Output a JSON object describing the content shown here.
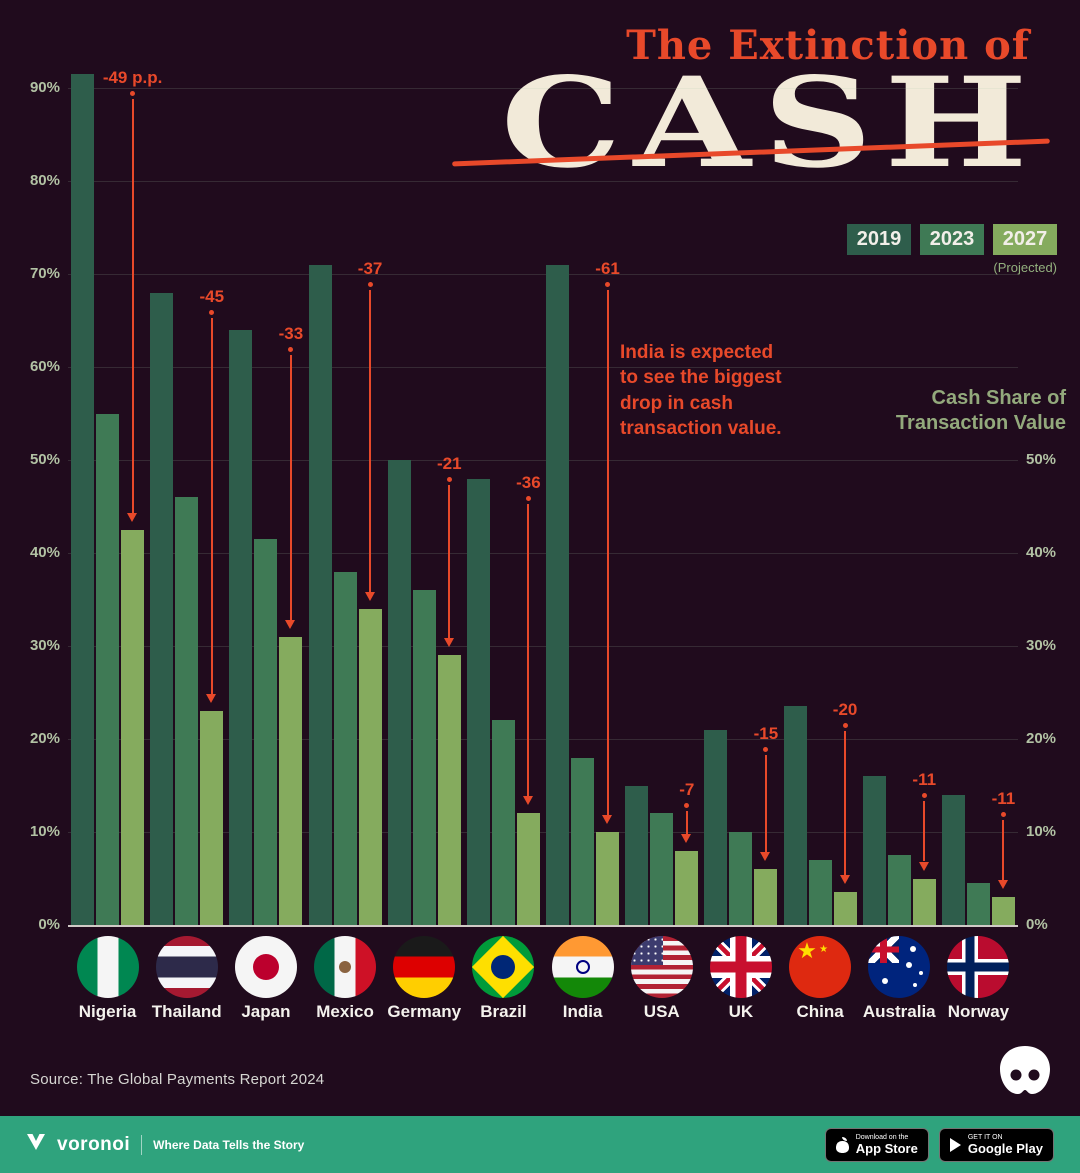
{
  "title": {
    "line1": "The Extinction of",
    "line2": "CASH"
  },
  "legend": {
    "years": [
      "2019",
      "2023",
      "2027"
    ],
    "note": "(Projected)"
  },
  "right_axis_label": "Cash Share of\nTransaction Value",
  "annotation_india": "India is expected\nto see the biggest\ndrop in cash\ntransaction value.",
  "chart_data": {
    "type": "bar",
    "title": "The Extinction of Cash",
    "unit": "% cash share of transaction value",
    "categories": [
      "Nigeria",
      "Thailand",
      "Japan",
      "Mexico",
      "Germany",
      "Brazil",
      "India",
      "USA",
      "UK",
      "China",
      "Australia",
      "Norway"
    ],
    "series": [
      {
        "name": "2019",
        "values": [
          91.5,
          68,
          64,
          71,
          50,
          48,
          71,
          15,
          21,
          23.5,
          16,
          14
        ]
      },
      {
        "name": "2023",
        "values": [
          55,
          46,
          41.5,
          38,
          36,
          22,
          18,
          12,
          10,
          7,
          7.5,
          4.5
        ]
      },
      {
        "name": "2027",
        "values": [
          42.5,
          23,
          31,
          34,
          29,
          12,
          10,
          8,
          6,
          3.5,
          5,
          3
        ]
      }
    ],
    "drop_labels": [
      "-49 p.p.",
      "-45",
      "-33",
      "-37",
      "-21",
      "-36",
      "-61",
      "-7",
      "-15",
      "-20",
      "-11",
      "-11"
    ],
    "y_ticks_left": [
      0,
      10,
      20,
      30,
      40,
      50,
      60,
      70,
      80,
      90
    ],
    "y_ticks_right": [
      0,
      10,
      20,
      30,
      40,
      50
    ],
    "ylim": [
      0,
      93
    ],
    "grid": "horizontal",
    "legend_position": "top-right",
    "flag_icons": [
      "nigeria-flag-icon",
      "thailand-flag-icon",
      "japan-flag-icon",
      "mexico-flag-icon",
      "germany-flag-icon",
      "brazil-flag-icon",
      "india-flag-icon",
      "usa-flag-icon",
      "uk-flag-icon",
      "china-flag-icon",
      "australia-flag-icon",
      "norway-flag-icon"
    ]
  },
  "source": "Source: The Global Payments Report 2024",
  "footer": {
    "brand": "voronoi",
    "tagline": "Where Data Tells the Story",
    "badges": [
      {
        "line1": "Download on the",
        "line2": "App Store"
      },
      {
        "line1": "GET IT ON",
        "line2": "Google Play"
      }
    ]
  },
  "icons": [
    "voronoi-logo-icon",
    "voronoi-app-icon",
    "apple-logo-icon",
    "google-play-icon"
  ],
  "colors": {
    "background": "#200b1d",
    "accent": "#e8492a",
    "cash_text": "#f2ead9",
    "bar_2019": "#2e5d4b",
    "bar_2023": "#3f7a55",
    "bar_2027": "#85ab5e",
    "footer": "#2fa37d",
    "axis_text": "#b2c2a4",
    "right_label": "#93a97c"
  }
}
